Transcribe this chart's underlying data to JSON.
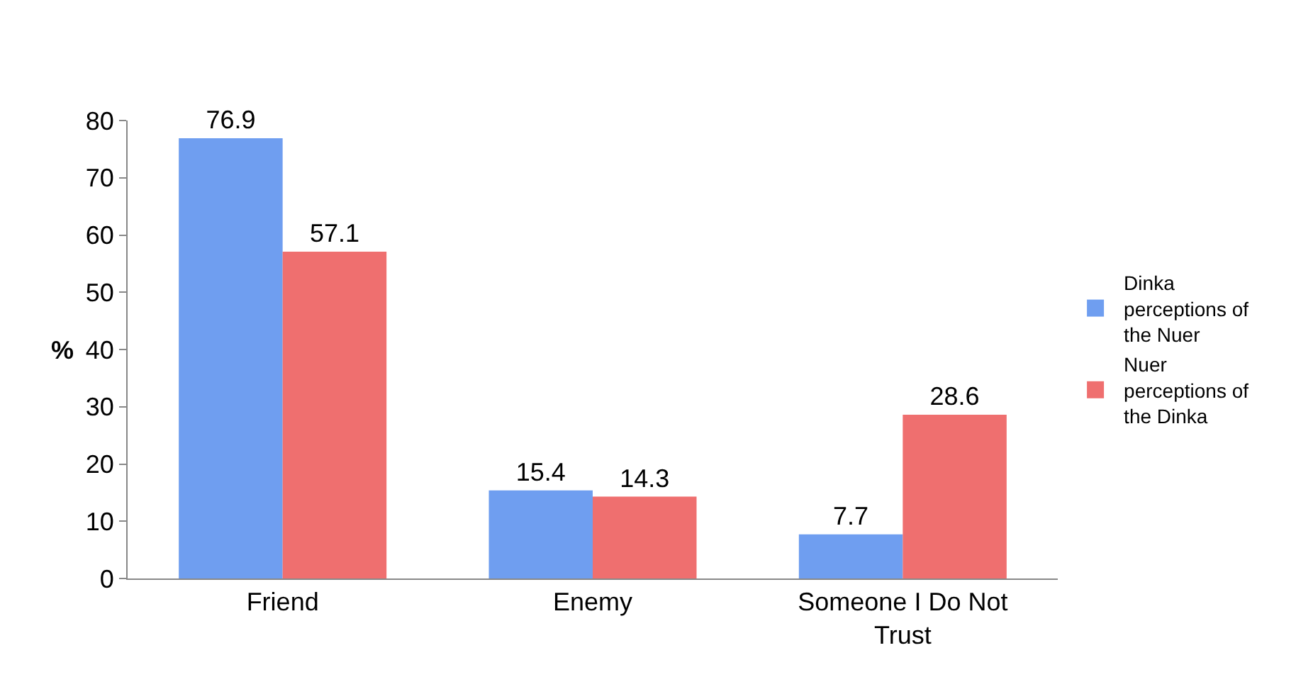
{
  "chart_data": {
    "type": "bar",
    "ylabel": "%",
    "categories": [
      "Friend",
      "Enemy",
      "Someone I Do Not Trust"
    ],
    "series": [
      {
        "name": "Dinka perceptions of the Nuer",
        "color": "#6f9ef0",
        "values": [
          76.9,
          15.4,
          7.7
        ]
      },
      {
        "name": "Nuer perceptions of the Dinka",
        "color": "#ef6f6f",
        "values": [
          57.1,
          14.3,
          28.6
        ]
      }
    ],
    "ylim": [
      0,
      80
    ],
    "yticks": [
      0,
      10,
      20,
      30,
      40,
      50,
      60,
      70,
      80
    ],
    "legend": "right",
    "data_labels": true
  }
}
